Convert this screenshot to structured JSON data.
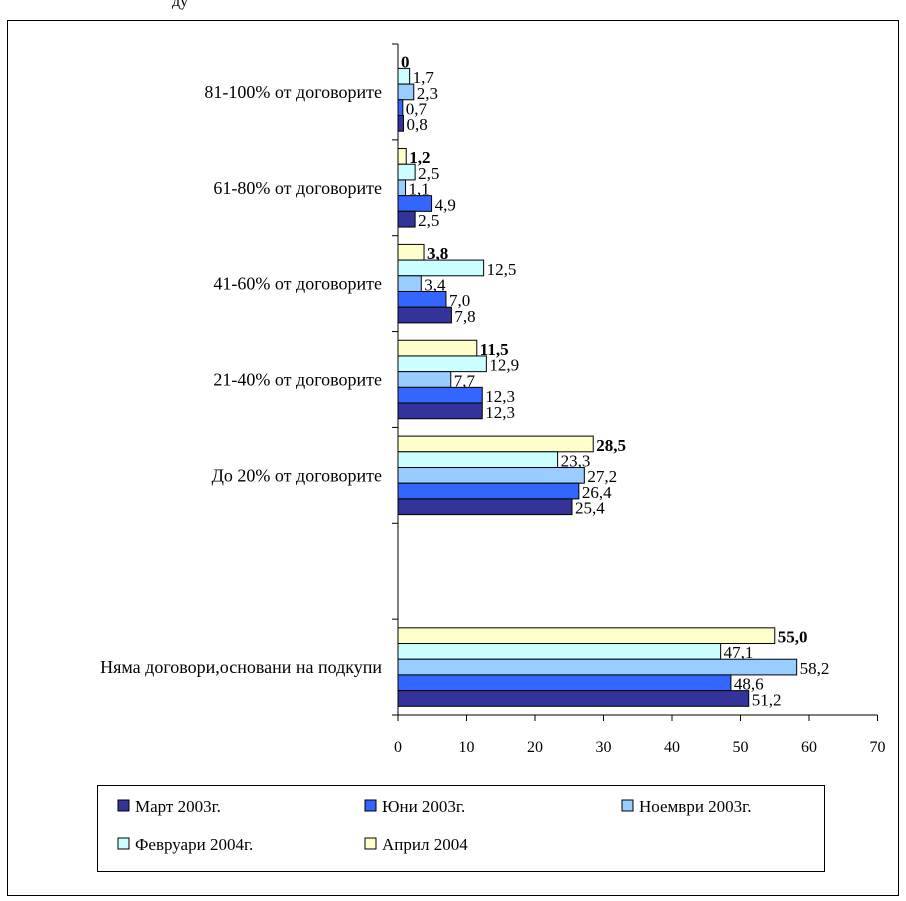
{
  "header_fragment": "ду",
  "chart_data": {
    "type": "bar",
    "orientation": "horizontal",
    "categories": [
      "81-100% от договорите",
      "61-80% от договорите",
      "41-60% от договорите",
      "21-40% от договорите",
      "До 20% от договорите",
      "",
      "Няма договори,основани на подкупи"
    ],
    "series": [
      {
        "name": "Март 2003г.",
        "color": "#333399",
        "values": [
          0.8,
          2.5,
          7.8,
          12.3,
          25.4,
          null,
          51.2
        ],
        "labels": [
          "0,8",
          "2,5",
          "7,8",
          "12,3",
          "25,4",
          "",
          "51,2"
        ]
      },
      {
        "name": "Юни 2003г.",
        "color": "#3366ff",
        "values": [
          0.7,
          4.9,
          7.0,
          12.3,
          26.4,
          null,
          48.6
        ],
        "labels": [
          "0,7",
          "4,9",
          "7,0",
          "12,3",
          "26,4",
          "",
          "48,6"
        ]
      },
      {
        "name": "Ноември 2003г.",
        "color": "#99ccff",
        "values": [
          2.3,
          1.1,
          3.4,
          7.7,
          27.2,
          null,
          58.2
        ],
        "labels": [
          "2,3",
          "1,1",
          "3,4",
          "7,7",
          "27,2",
          "",
          "58,2"
        ]
      },
      {
        "name": "Февруари 2004г.",
        "color": "#ccffff",
        "values": [
          1.7,
          2.5,
          12.5,
          12.9,
          23.3,
          null,
          47.1
        ],
        "labels": [
          "1,7",
          "2,5",
          "12,5",
          "12,9",
          "23,3",
          "",
          "47,1"
        ]
      },
      {
        "name": "Април 2004",
        "color": "#ffffcc",
        "values": [
          0,
          1.2,
          3.8,
          11.5,
          28.5,
          null,
          55.0
        ],
        "labels": [
          "0",
          "1,2",
          "3,8",
          "11,5",
          "28,5",
          "",
          "55,0"
        ],
        "labels_bold": true
      }
    ],
    "xlim": [
      0,
      70
    ],
    "xticks": [
      "0",
      "10",
      "20",
      "30",
      "40",
      "50",
      "60",
      "70"
    ],
    "xtick_values": [
      0,
      10,
      20,
      30,
      40,
      50,
      60,
      70
    ],
    "grid": false,
    "legend_position": "bottom"
  }
}
